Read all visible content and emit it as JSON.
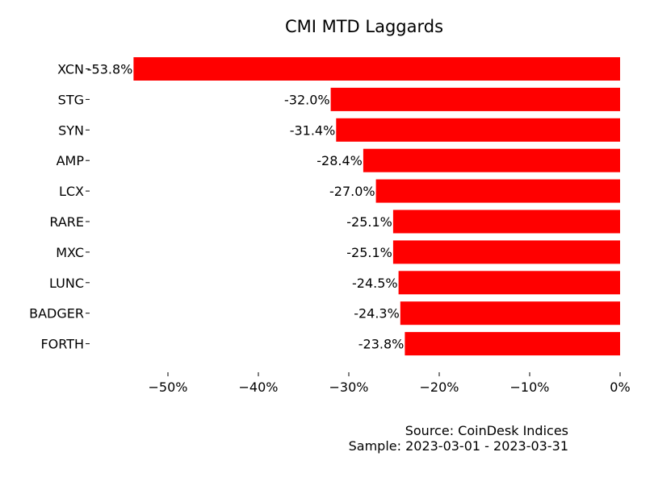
{
  "chart_data": {
    "type": "bar",
    "orientation": "horizontal",
    "title": "CMI MTD Laggards",
    "categories": [
      "XCN",
      "STG",
      "SYN",
      "AMP",
      "LCX",
      "RARE",
      "MXC",
      "LUNC",
      "BADGER",
      "FORTH"
    ],
    "values": [
      -53.8,
      -32.0,
      -31.4,
      -28.4,
      -27.0,
      -25.1,
      -25.1,
      -24.5,
      -24.3,
      -23.8
    ],
    "data_labels": [
      "-53.8%",
      "-32.0%",
      "-31.4%",
      "-28.4%",
      "-27.0%",
      "-25.1%",
      "-25.1%",
      "-24.5%",
      "-24.3%",
      "-23.8%"
    ],
    "x_ticks": [
      -50,
      -40,
      -30,
      -20,
      -10,
      0
    ],
    "x_tick_labels": [
      "−50%",
      "−40%",
      "−30%",
      "−20%",
      "−10%",
      "0%"
    ],
    "xlim": [
      -55,
      0
    ],
    "xlabel": "",
    "ylabel": "",
    "grid": false,
    "bar_color": "#ff0000"
  },
  "footer": {
    "source": "Source: CoinDesk Indices",
    "sample": "Sample: 2023-03-01 - 2023-03-31"
  }
}
